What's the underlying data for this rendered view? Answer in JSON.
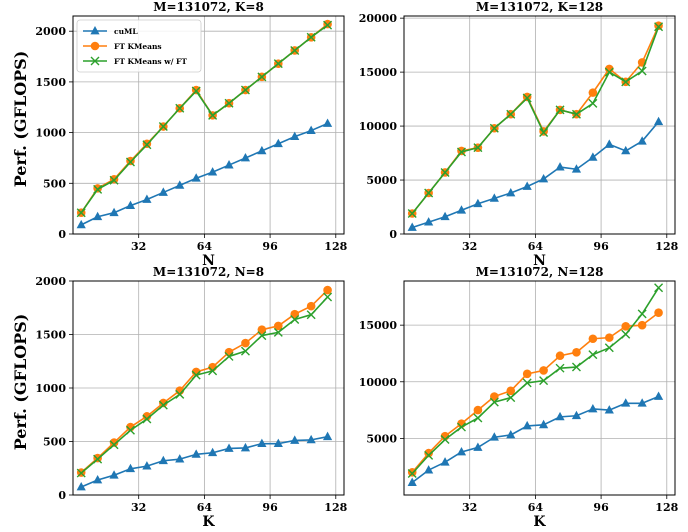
{
  "chart_data": [
    {
      "type": "line",
      "title": "M=131072, K=8",
      "xlabel": "N",
      "ylabel": "Perf. (GFLOPS)",
      "xlim": [
        0,
        132
      ],
      "ylim": [
        0,
        2150
      ],
      "xticks": [
        "32",
        "64",
        "96",
        "128"
      ],
      "yticks": [
        "0",
        "500",
        "1000",
        "1500",
        "2000"
      ],
      "grid": true,
      "legend": "top-left",
      "x": [
        4,
        12,
        20,
        28,
        36,
        44,
        52,
        60,
        68,
        76,
        84,
        92,
        100,
        108,
        116,
        124
      ],
      "series": [
        {
          "name": "cuML",
          "color": "#1f77b4",
          "marker": "triangle",
          "values": [
            90,
            170,
            210,
            280,
            340,
            410,
            480,
            550,
            610,
            680,
            750,
            820,
            890,
            960,
            1020,
            1090
          ]
        },
        {
          "name": "FT KMeans",
          "color": "#ff7f0e",
          "marker": "circle",
          "values": [
            210,
            450,
            540,
            720,
            890,
            1060,
            1240,
            1420,
            1170,
            1290,
            1420,
            1550,
            1680,
            1810,
            1940,
            2070
          ]
        },
        {
          "name": "FT KMeans w/ FT",
          "color": "#2ca02c",
          "marker": "x",
          "values": [
            210,
            440,
            530,
            710,
            880,
            1060,
            1240,
            1410,
            1170,
            1290,
            1420,
            1550,
            1680,
            1810,
            1940,
            2060
          ]
        }
      ]
    },
    {
      "type": "line",
      "title": "M=131072, K=128",
      "xlabel": "N",
      "ylabel": "",
      "xlim": [
        0,
        132
      ],
      "ylim": [
        0,
        20200
      ],
      "xticks": [
        "32",
        "64",
        "96",
        "128"
      ],
      "yticks": [
        "0",
        "5000",
        "10000",
        "15000",
        "20000"
      ],
      "grid": true,
      "x": [
        4,
        12,
        20,
        28,
        36,
        44,
        52,
        60,
        68,
        76,
        84,
        92,
        100,
        108,
        116,
        124
      ],
      "series": [
        {
          "name": "cuML",
          "color": "#1f77b4",
          "marker": "triangle",
          "values": [
            600,
            1100,
            1600,
            2200,
            2800,
            3300,
            3800,
            4400,
            5100,
            6200,
            6000,
            7100,
            8300,
            7700,
            8600,
            10400
          ]
        },
        {
          "name": "FT KMeans",
          "color": "#ff7f0e",
          "marker": "circle",
          "values": [
            1900,
            3800,
            5700,
            7700,
            8000,
            9800,
            11100,
            12700,
            9500,
            11500,
            11100,
            13100,
            15300,
            14100,
            15900,
            19300
          ]
        },
        {
          "name": "FT KMeans w/ FT",
          "color": "#2ca02c",
          "marker": "x",
          "values": [
            1900,
            3800,
            5700,
            7600,
            8000,
            9800,
            11100,
            12600,
            9400,
            11500,
            11100,
            12100,
            15000,
            14100,
            15100,
            19200
          ]
        }
      ]
    },
    {
      "type": "line",
      "title": "M=131072, N=8",
      "xlabel": "K",
      "ylabel": "Perf. (GFLOPS)",
      "xlim": [
        0,
        132
      ],
      "ylim": [
        0,
        2000
      ],
      "xticks": [
        "32",
        "64",
        "96",
        "128"
      ],
      "yticks": [
        "0",
        "500",
        "1000",
        "1500",
        "2000"
      ],
      "grid": true,
      "x": [
        4,
        12,
        20,
        28,
        36,
        44,
        52,
        60,
        68,
        76,
        84,
        92,
        100,
        108,
        116,
        124
      ],
      "series": [
        {
          "name": "cuML",
          "color": "#1f77b4",
          "marker": "triangle",
          "values": [
            75,
            140,
            185,
            245,
            270,
            320,
            335,
            380,
            395,
            435,
            440,
            480,
            480,
            510,
            515,
            545
          ]
        },
        {
          "name": "FT KMeans",
          "color": "#ff7f0e",
          "marker": "circle",
          "values": [
            210,
            345,
            490,
            635,
            735,
            860,
            975,
            1150,
            1195,
            1335,
            1420,
            1545,
            1580,
            1690,
            1765,
            1915
          ]
        },
        {
          "name": "FT KMeans w/ FT",
          "color": "#2ca02c",
          "marker": "x",
          "values": [
            205,
            335,
            470,
            605,
            710,
            840,
            940,
            1120,
            1160,
            1295,
            1345,
            1490,
            1520,
            1640,
            1685,
            1850
          ]
        }
      ]
    },
    {
      "type": "line",
      "title": "M=131072, N=128",
      "xlabel": "K",
      "ylabel": "",
      "xlim": [
        0,
        132
      ],
      "ylim": [
        0,
        18900
      ],
      "xticks": [
        "32",
        "64",
        "96",
        "128"
      ],
      "yticks": [
        "5000",
        "10000",
        "15000"
      ],
      "grid": true,
      "x": [
        4,
        12,
        20,
        28,
        36,
        44,
        52,
        60,
        68,
        76,
        84,
        92,
        100,
        108,
        116,
        124
      ],
      "series": [
        {
          "name": "cuML",
          "color": "#1f77b4",
          "marker": "triangle",
          "values": [
            1100,
            2200,
            2900,
            3800,
            4200,
            5100,
            5300,
            6100,
            6200,
            6900,
            7000,
            7600,
            7500,
            8100,
            8100,
            8700
          ]
        },
        {
          "name": "FT KMeans",
          "color": "#ff7f0e",
          "marker": "circle",
          "values": [
            2000,
            3700,
            5200,
            6300,
            7500,
            8700,
            9200,
            10700,
            11000,
            12300,
            12600,
            13800,
            13900,
            14900,
            15000,
            16100
          ]
        },
        {
          "name": "FT KMeans w/ FT",
          "color": "#2ca02c",
          "marker": "x",
          "values": [
            1900,
            3500,
            4900,
            6000,
            6800,
            8200,
            8600,
            9900,
            10100,
            11200,
            11300,
            12400,
            13000,
            14200,
            16000,
            18300
          ]
        }
      ]
    }
  ]
}
